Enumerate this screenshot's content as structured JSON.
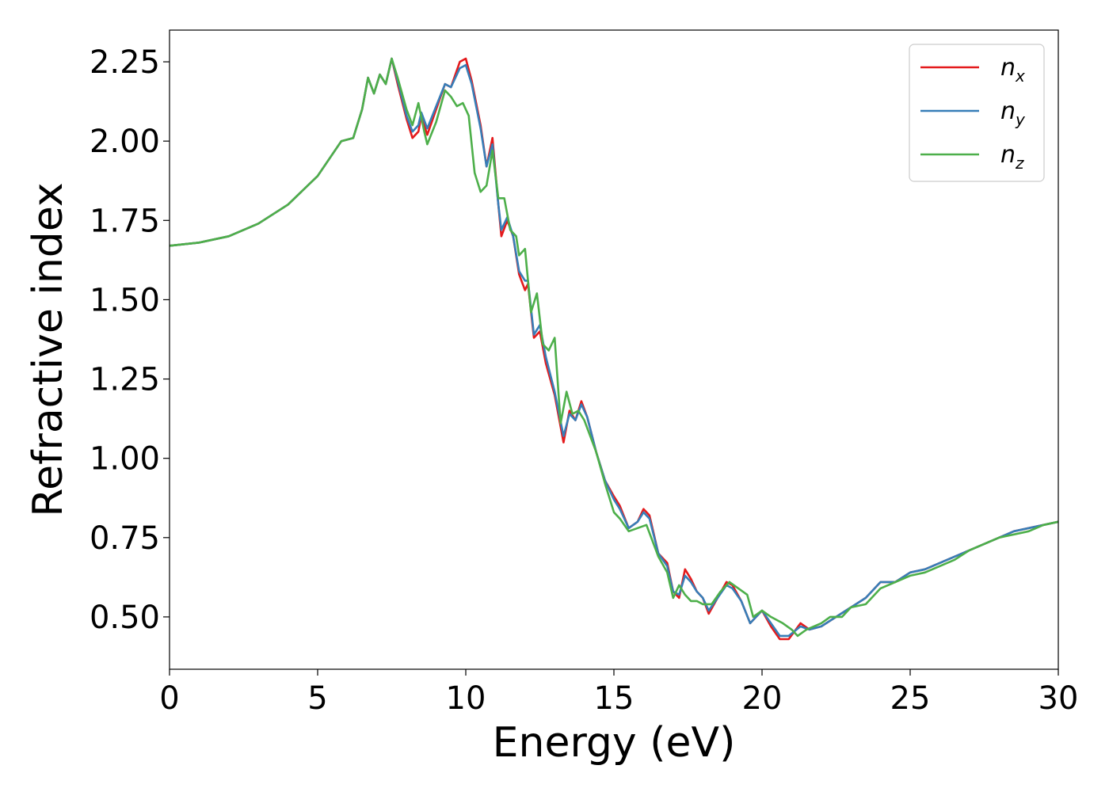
{
  "chart_data": {
    "type": "line",
    "xlabel": "Energy (eV)",
    "ylabel": "Refractive index",
    "xlim": [
      0,
      30
    ],
    "ylim": [
      0.335,
      2.35
    ],
    "xticks": [
      "0",
      "5",
      "10",
      "15",
      "20",
      "25",
      "30"
    ],
    "xtick_values": [
      0,
      5,
      10,
      15,
      20,
      25,
      30
    ],
    "yticks": [
      "0.50",
      "0.75",
      "1.00",
      "1.25",
      "1.50",
      "1.75",
      "2.00",
      "2.25"
    ],
    "ytick_values": [
      0.5,
      0.75,
      1.0,
      1.25,
      1.5,
      1.75,
      2.0,
      2.25
    ],
    "grid": false,
    "legend_position": "top-right",
    "series": [
      {
        "name": "n_x",
        "legend_main": "n",
        "legend_sub": "x",
        "color": "#e41a1c",
        "points": [
          [
            0,
            1.67
          ],
          [
            1,
            1.68
          ],
          [
            2,
            1.7
          ],
          [
            3,
            1.74
          ],
          [
            4,
            1.8
          ],
          [
            5,
            1.89
          ],
          [
            5.8,
            2.0
          ],
          [
            6.2,
            2.01
          ],
          [
            6.5,
            2.1
          ],
          [
            6.7,
            2.2
          ],
          [
            6.9,
            2.15
          ],
          [
            7.1,
            2.21
          ],
          [
            7.3,
            2.18
          ],
          [
            7.5,
            2.26
          ],
          [
            7.7,
            2.18
          ],
          [
            8.0,
            2.07
          ],
          [
            8.2,
            2.01
          ],
          [
            8.4,
            2.03
          ],
          [
            8.5,
            2.08
          ],
          [
            8.7,
            2.02
          ],
          [
            9.0,
            2.1
          ],
          [
            9.3,
            2.18
          ],
          [
            9.5,
            2.17
          ],
          [
            9.8,
            2.25
          ],
          [
            10.0,
            2.26
          ],
          [
            10.2,
            2.19
          ],
          [
            10.5,
            2.05
          ],
          [
            10.7,
            1.92
          ],
          [
            10.9,
            2.01
          ],
          [
            11.1,
            1.8
          ],
          [
            11.2,
            1.7
          ],
          [
            11.4,
            1.75
          ],
          [
            11.6,
            1.7
          ],
          [
            11.8,
            1.58
          ],
          [
            12.0,
            1.53
          ],
          [
            12.1,
            1.55
          ],
          [
            12.3,
            1.38
          ],
          [
            12.5,
            1.4
          ],
          [
            12.7,
            1.3
          ],
          [
            13.0,
            1.2
          ],
          [
            13.3,
            1.05
          ],
          [
            13.5,
            1.15
          ],
          [
            13.7,
            1.12
          ],
          [
            13.9,
            1.18
          ],
          [
            14.1,
            1.13
          ],
          [
            14.4,
            1.02
          ],
          [
            14.7,
            0.93
          ],
          [
            15.0,
            0.88
          ],
          [
            15.2,
            0.85
          ],
          [
            15.5,
            0.78
          ],
          [
            15.8,
            0.8
          ],
          [
            16.0,
            0.84
          ],
          [
            16.2,
            0.82
          ],
          [
            16.5,
            0.7
          ],
          [
            16.8,
            0.67
          ],
          [
            17.0,
            0.58
          ],
          [
            17.2,
            0.56
          ],
          [
            17.4,
            0.65
          ],
          [
            17.6,
            0.62
          ],
          [
            17.8,
            0.58
          ],
          [
            18.0,
            0.56
          ],
          [
            18.2,
            0.51
          ],
          [
            18.5,
            0.56
          ],
          [
            18.8,
            0.61
          ],
          [
            19.0,
            0.6
          ],
          [
            19.3,
            0.55
          ],
          [
            19.6,
            0.48
          ],
          [
            19.8,
            0.5
          ],
          [
            20.0,
            0.52
          ],
          [
            20.3,
            0.47
          ],
          [
            20.6,
            0.43
          ],
          [
            20.9,
            0.43
          ],
          [
            21.3,
            0.48
          ],
          [
            21.6,
            0.46
          ],
          [
            22.0,
            0.47
          ],
          [
            22.5,
            0.5
          ],
          [
            23.0,
            0.53
          ],
          [
            23.5,
            0.56
          ],
          [
            24.0,
            0.61
          ],
          [
            24.5,
            0.61
          ],
          [
            25.0,
            0.64
          ],
          [
            25.5,
            0.65
          ],
          [
            26.0,
            0.67
          ],
          [
            26.5,
            0.69
          ],
          [
            27.0,
            0.71
          ],
          [
            27.5,
            0.73
          ],
          [
            28.0,
            0.75
          ],
          [
            28.5,
            0.77
          ],
          [
            29.0,
            0.78
          ],
          [
            29.5,
            0.79
          ],
          [
            30.0,
            0.8
          ]
        ]
      },
      {
        "name": "n_y",
        "legend_main": "n",
        "legend_sub": "y",
        "color": "#377eb8",
        "points": [
          [
            0,
            1.67
          ],
          [
            1,
            1.68
          ],
          [
            2,
            1.7
          ],
          [
            3,
            1.74
          ],
          [
            4,
            1.8
          ],
          [
            5,
            1.89
          ],
          [
            5.8,
            2.0
          ],
          [
            6.2,
            2.01
          ],
          [
            6.5,
            2.1
          ],
          [
            6.7,
            2.2
          ],
          [
            6.9,
            2.15
          ],
          [
            7.1,
            2.21
          ],
          [
            7.3,
            2.18
          ],
          [
            7.5,
            2.26
          ],
          [
            7.7,
            2.19
          ],
          [
            8.0,
            2.08
          ],
          [
            8.2,
            2.03
          ],
          [
            8.4,
            2.05
          ],
          [
            8.5,
            2.09
          ],
          [
            8.7,
            2.04
          ],
          [
            9.0,
            2.11
          ],
          [
            9.3,
            2.18
          ],
          [
            9.5,
            2.17
          ],
          [
            9.8,
            2.23
          ],
          [
            10.0,
            2.24
          ],
          [
            10.2,
            2.18
          ],
          [
            10.5,
            2.04
          ],
          [
            10.7,
            1.92
          ],
          [
            10.9,
            1.99
          ],
          [
            11.1,
            1.8
          ],
          [
            11.2,
            1.72
          ],
          [
            11.4,
            1.76
          ],
          [
            11.6,
            1.7
          ],
          [
            11.8,
            1.59
          ],
          [
            12.0,
            1.56
          ],
          [
            12.1,
            1.56
          ],
          [
            12.3,
            1.39
          ],
          [
            12.5,
            1.42
          ],
          [
            12.7,
            1.32
          ],
          [
            13.0,
            1.21
          ],
          [
            13.3,
            1.07
          ],
          [
            13.5,
            1.14
          ],
          [
            13.7,
            1.12
          ],
          [
            13.9,
            1.17
          ],
          [
            14.1,
            1.13
          ],
          [
            14.4,
            1.02
          ],
          [
            14.7,
            0.93
          ],
          [
            15.0,
            0.87
          ],
          [
            15.2,
            0.84
          ],
          [
            15.5,
            0.78
          ],
          [
            15.8,
            0.8
          ],
          [
            16.0,
            0.83
          ],
          [
            16.2,
            0.81
          ],
          [
            16.5,
            0.7
          ],
          [
            16.8,
            0.66
          ],
          [
            17.0,
            0.58
          ],
          [
            17.2,
            0.57
          ],
          [
            17.4,
            0.63
          ],
          [
            17.6,
            0.61
          ],
          [
            17.8,
            0.58
          ],
          [
            18.0,
            0.56
          ],
          [
            18.2,
            0.52
          ],
          [
            18.5,
            0.56
          ],
          [
            18.8,
            0.6
          ],
          [
            19.0,
            0.59
          ],
          [
            19.3,
            0.55
          ],
          [
            19.6,
            0.48
          ],
          [
            19.8,
            0.5
          ],
          [
            20.0,
            0.52
          ],
          [
            20.3,
            0.48
          ],
          [
            20.6,
            0.44
          ],
          [
            20.9,
            0.44
          ],
          [
            21.3,
            0.47
          ],
          [
            21.6,
            0.46
          ],
          [
            22.0,
            0.47
          ],
          [
            22.5,
            0.5
          ],
          [
            23.0,
            0.53
          ],
          [
            23.5,
            0.56
          ],
          [
            24.0,
            0.61
          ],
          [
            24.5,
            0.61
          ],
          [
            25.0,
            0.64
          ],
          [
            25.5,
            0.65
          ],
          [
            26.0,
            0.67
          ],
          [
            26.5,
            0.69
          ],
          [
            27.0,
            0.71
          ],
          [
            27.5,
            0.73
          ],
          [
            28.0,
            0.75
          ],
          [
            28.5,
            0.77
          ],
          [
            29.0,
            0.78
          ],
          [
            29.5,
            0.79
          ],
          [
            30.0,
            0.8
          ]
        ]
      },
      {
        "name": "n_z",
        "legend_main": "n",
        "legend_sub": "z",
        "color": "#4daf4a",
        "points": [
          [
            0,
            1.67
          ],
          [
            1,
            1.68
          ],
          [
            2,
            1.7
          ],
          [
            3,
            1.74
          ],
          [
            4,
            1.8
          ],
          [
            5,
            1.89
          ],
          [
            5.8,
            2.0
          ],
          [
            6.2,
            2.01
          ],
          [
            6.5,
            2.1
          ],
          [
            6.7,
            2.2
          ],
          [
            6.9,
            2.15
          ],
          [
            7.1,
            2.21
          ],
          [
            7.3,
            2.18
          ],
          [
            7.5,
            2.26
          ],
          [
            7.7,
            2.2
          ],
          [
            8.0,
            2.1
          ],
          [
            8.2,
            2.05
          ],
          [
            8.4,
            2.12
          ],
          [
            8.6,
            2.03
          ],
          [
            8.7,
            1.99
          ],
          [
            9.0,
            2.06
          ],
          [
            9.3,
            2.16
          ],
          [
            9.5,
            2.14
          ],
          [
            9.7,
            2.11
          ],
          [
            9.9,
            2.12
          ],
          [
            10.1,
            2.08
          ],
          [
            10.3,
            1.9
          ],
          [
            10.5,
            1.84
          ],
          [
            10.7,
            1.86
          ],
          [
            10.9,
            1.97
          ],
          [
            11.1,
            1.82
          ],
          [
            11.3,
            1.82
          ],
          [
            11.5,
            1.72
          ],
          [
            11.7,
            1.7
          ],
          [
            11.8,
            1.64
          ],
          [
            12.0,
            1.66
          ],
          [
            12.2,
            1.46
          ],
          [
            12.4,
            1.52
          ],
          [
            12.6,
            1.36
          ],
          [
            12.8,
            1.34
          ],
          [
            13.0,
            1.38
          ],
          [
            13.2,
            1.11
          ],
          [
            13.4,
            1.21
          ],
          [
            13.6,
            1.14
          ],
          [
            13.8,
            1.15
          ],
          [
            14.0,
            1.12
          ],
          [
            14.4,
            1.02
          ],
          [
            14.7,
            0.92
          ],
          [
            15.0,
            0.83
          ],
          [
            15.2,
            0.81
          ],
          [
            15.5,
            0.77
          ],
          [
            15.8,
            0.78
          ],
          [
            16.1,
            0.79
          ],
          [
            16.5,
            0.69
          ],
          [
            16.8,
            0.64
          ],
          [
            17.0,
            0.56
          ],
          [
            17.2,
            0.6
          ],
          [
            17.4,
            0.57
          ],
          [
            17.6,
            0.55
          ],
          [
            17.8,
            0.55
          ],
          [
            18.0,
            0.54
          ],
          [
            18.3,
            0.54
          ],
          [
            18.6,
            0.58
          ],
          [
            18.9,
            0.61
          ],
          [
            19.2,
            0.59
          ],
          [
            19.5,
            0.57
          ],
          [
            19.7,
            0.5
          ],
          [
            20.0,
            0.52
          ],
          [
            20.3,
            0.5
          ],
          [
            20.7,
            0.48
          ],
          [
            21.0,
            0.46
          ],
          [
            21.2,
            0.44
          ],
          [
            21.5,
            0.46
          ],
          [
            22.0,
            0.48
          ],
          [
            22.3,
            0.5
          ],
          [
            22.7,
            0.5
          ],
          [
            23.0,
            0.53
          ],
          [
            23.5,
            0.54
          ],
          [
            24.0,
            0.59
          ],
          [
            24.5,
            0.61
          ],
          [
            25.0,
            0.63
          ],
          [
            25.5,
            0.64
          ],
          [
            26.0,
            0.66
          ],
          [
            26.5,
            0.68
          ],
          [
            27.0,
            0.71
          ],
          [
            27.5,
            0.73
          ],
          [
            28.0,
            0.75
          ],
          [
            28.5,
            0.76
          ],
          [
            29.0,
            0.77
          ],
          [
            29.5,
            0.79
          ],
          [
            30.0,
            0.8
          ]
        ]
      }
    ]
  }
}
